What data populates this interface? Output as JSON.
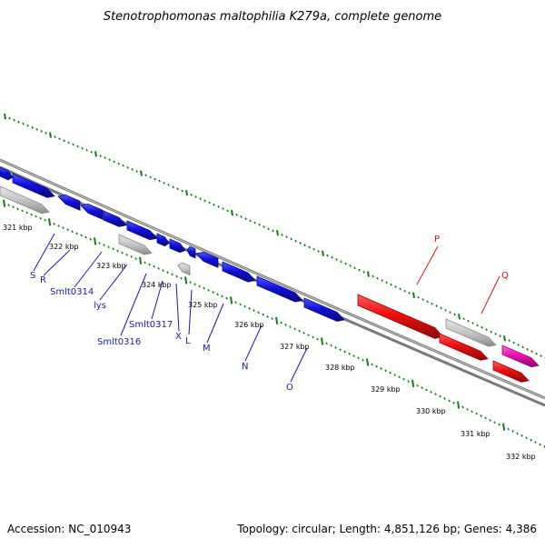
{
  "title": "Stenotrophomonas maltophilia K279a, complete genome",
  "footer": {
    "accession": "Accession: NC_010943",
    "summary": "Topology: circular; Length: 4,851,126 bp; Genes: 4,386"
  },
  "colors": {
    "blue_gene": "#1010d8",
    "blue_gene_edge": "#0a0a8a",
    "grey_gene": "#c4c4c4",
    "grey_gene_edge": "#8a8a8a",
    "red_gene": "#ee1010",
    "red_gene_edge": "#9a0a0a",
    "pink_gene": "#ee10b0",
    "pink_gene_edge": "#a00a78",
    "backbone": "#8a8a8a",
    "ticks": "#1b7a1b",
    "blue_label": "#1a1aa0",
    "red_label": "#d41818"
  },
  "ticks": [
    {
      "label": "321 kbp"
    },
    {
      "label": "322 kbp"
    },
    {
      "label": "323 kbp"
    },
    {
      "label": "324 kbp"
    },
    {
      "label": "325 kbp"
    },
    {
      "label": "326 kbp"
    },
    {
      "label": "327 kbp"
    },
    {
      "label": "328 kbp"
    },
    {
      "label": "329 kbp"
    },
    {
      "label": "330 kbp"
    },
    {
      "label": "331 kbp"
    },
    {
      "label": "332 kbp"
    }
  ],
  "gene_labels": [
    {
      "text": "S"
    },
    {
      "text": "R"
    },
    {
      "text": "Smlt0314"
    },
    {
      "text": "lys"
    },
    {
      "text": "Smlt0316"
    },
    {
      "text": "Smlt0317"
    },
    {
      "text": "X"
    },
    {
      "text": "L"
    },
    {
      "text": "M"
    },
    {
      "text": "N"
    },
    {
      "text": "O"
    },
    {
      "text": "P"
    },
    {
      "text": "Q"
    }
  ]
}
